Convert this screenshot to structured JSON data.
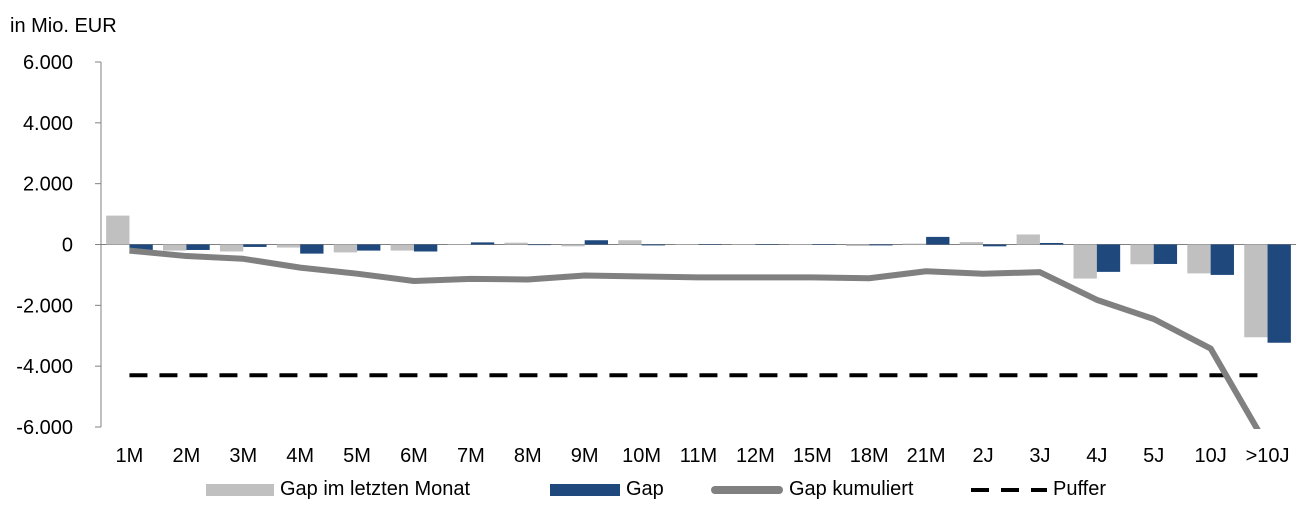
{
  "chart_data": {
    "type": "bar",
    "unit_label": "in Mio. EUR",
    "categories": [
      "1M",
      "2M",
      "3M",
      "4M",
      "5M",
      "6M",
      "7M",
      "8M",
      "9M",
      "10M",
      "11M",
      "12M",
      "15M",
      "18M",
      "21M",
      "2J",
      "3J",
      "4J",
      "5J",
      "10J",
      ">10J"
    ],
    "ylim": [
      -6000,
      6000
    ],
    "yticks": [
      6000,
      4000,
      2000,
      0,
      -2000,
      -4000,
      -6000
    ],
    "ytick_labels": [
      "6.000",
      "4.000",
      "2.000",
      "0",
      "-2.000",
      "-4.000",
      "-6.000"
    ],
    "grid": false,
    "legend_position": "bottom",
    "series": [
      {
        "name": "Gap im letzten Monat",
        "type": "bar",
        "color": "#c0c0c0",
        "values": [
          950,
          -200,
          -230,
          -100,
          -260,
          -200,
          0,
          60,
          -60,
          140,
          0,
          0,
          0,
          -50,
          30,
          80,
          330,
          -1120,
          -650,
          -950,
          -3050
        ]
      },
      {
        "name": "Gap",
        "type": "bar",
        "color": "#1f497d",
        "values": [
          -200,
          -180,
          -80,
          -300,
          -200,
          -230,
          70,
          -20,
          140,
          -30,
          0,
          0,
          0,
          -30,
          250,
          -60,
          50,
          -900,
          -640,
          -1000,
          -3230
        ]
      },
      {
        "name": "Gap kumuliert",
        "type": "line",
        "color": "#808080",
        "values": [
          -200,
          -380,
          -470,
          -760,
          -960,
          -1200,
          -1130,
          -1150,
          -1020,
          -1050,
          -1080,
          -1080,
          -1080,
          -1110,
          -880,
          -960,
          -910,
          -1820,
          -2450,
          -3420,
          -6650
        ]
      },
      {
        "name": "Puffer",
        "type": "dashed-line",
        "color": "#000000",
        "value": -4300
      }
    ]
  }
}
